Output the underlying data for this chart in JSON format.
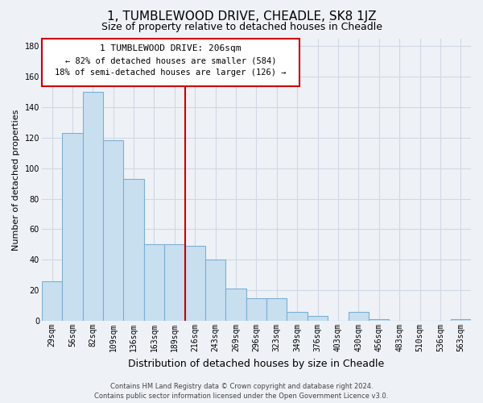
{
  "title": "1, TUMBLEWOOD DRIVE, CHEADLE, SK8 1JZ",
  "subtitle": "Size of property relative to detached houses in Cheadle",
  "xlabel": "Distribution of detached houses by size in Cheadle",
  "ylabel": "Number of detached properties",
  "bar_labels": [
    "29sqm",
    "56sqm",
    "82sqm",
    "109sqm",
    "136sqm",
    "163sqm",
    "189sqm",
    "216sqm",
    "243sqm",
    "269sqm",
    "296sqm",
    "323sqm",
    "349sqm",
    "376sqm",
    "403sqm",
    "430sqm",
    "456sqm",
    "483sqm",
    "510sqm",
    "536sqm",
    "563sqm"
  ],
  "bar_values": [
    26,
    123,
    150,
    118,
    93,
    50,
    50,
    49,
    40,
    21,
    15,
    15,
    6,
    3,
    0,
    6,
    1,
    0,
    0,
    0,
    1
  ],
  "bar_color": "#c8dff0",
  "bar_edge_color": "#7bafd4",
  "highlight_color": "#cc0000",
  "annotation_title": "1 TUMBLEWOOD DRIVE: 206sqm",
  "annotation_line1": "← 82% of detached houses are smaller (584)",
  "annotation_line2": "18% of semi-detached houses are larger (126) →",
  "annotation_box_color": "#ffffff",
  "annotation_box_edge_color": "#cc0000",
  "ylim": [
    0,
    185
  ],
  "yticks": [
    0,
    20,
    40,
    60,
    80,
    100,
    120,
    140,
    160,
    180
  ],
  "footer_line1": "Contains HM Land Registry data © Crown copyright and database right 2024.",
  "footer_line2": "Contains public sector information licensed under the Open Government Licence v3.0.",
  "bg_color": "#eef2f7",
  "plot_bg_color": "#eef2f7",
  "grid_color": "#d0d8e4",
  "title_fontsize": 11,
  "subtitle_fontsize": 9,
  "tick_fontsize": 7,
  "ylabel_fontsize": 8,
  "xlabel_fontsize": 9,
  "ann_fontsize": 8,
  "footer_fontsize": 6
}
